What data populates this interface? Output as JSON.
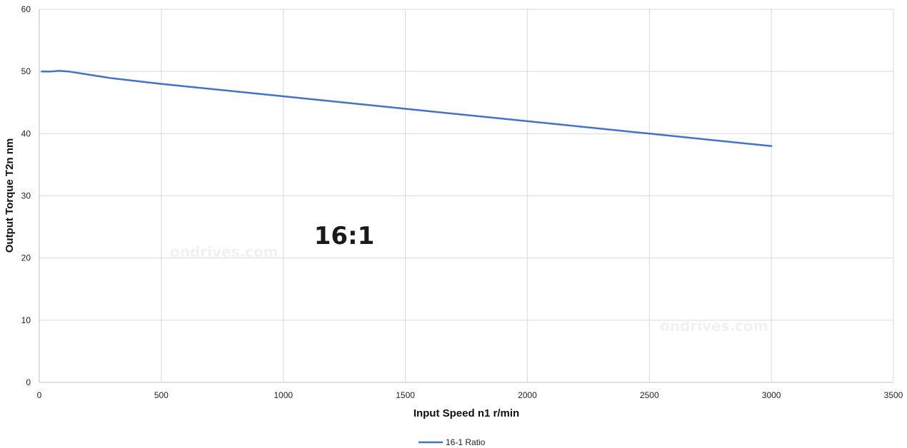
{
  "chart_data": {
    "type": "line",
    "xlabel": "Input Speed n1 r/min",
    "ylabel": "Output Torque T2n nm",
    "annotation": "16:1",
    "watermark": "ondrives.com",
    "xlim": [
      0,
      3500
    ],
    "ylim": [
      0,
      60
    ],
    "xticks": [
      0,
      500,
      1000,
      1500,
      2000,
      2500,
      3000,
      3500
    ],
    "yticks": [
      0,
      10,
      20,
      30,
      40,
      50,
      60
    ],
    "grid": true,
    "legend_position": "bottom",
    "series": [
      {
        "name": "16-1 Ratio",
        "color": "#4472c4",
        "x": [
          10,
          50,
          80,
          120,
          200,
          300,
          500,
          1000,
          1500,
          2000,
          2500,
          3000
        ],
        "y": [
          50,
          50,
          50.1,
          50,
          49.5,
          48.9,
          48,
          46,
          44,
          42,
          40,
          38
        ]
      }
    ]
  }
}
